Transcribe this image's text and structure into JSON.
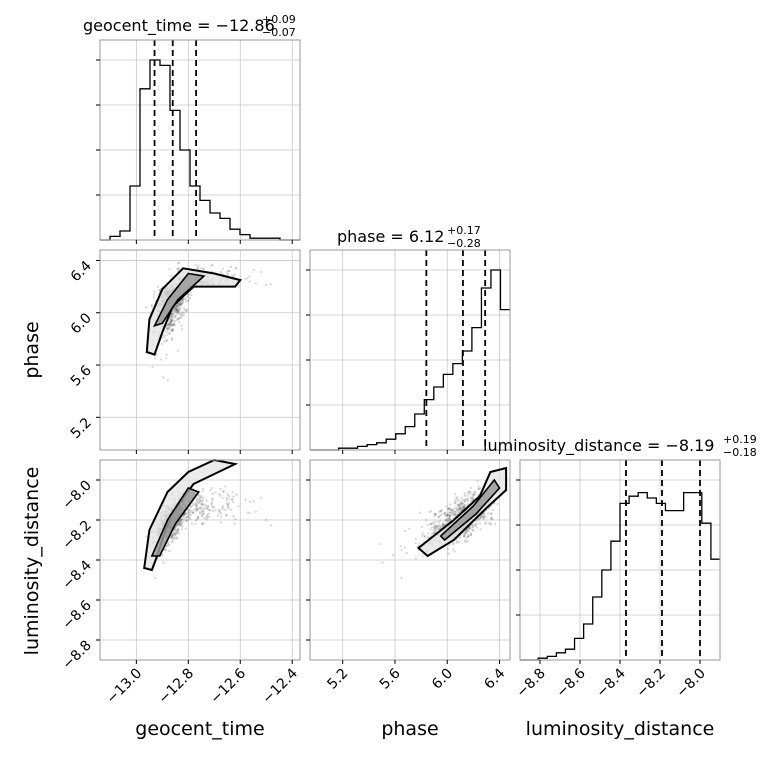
{
  "chart_data": {
    "type": "corner",
    "params": [
      "geocent_time",
      "phase",
      "luminosity_distance"
    ],
    "titles": [
      {
        "text": "geocent_time = −12.86",
        "sup": "+0.09",
        "sub": "−0.07"
      },
      {
        "text": "phase = 6.12",
        "sup": "+0.17",
        "sub": "−0.28"
      },
      {
        "text": "luminosity_distance = −8.19",
        "sup": "+0.19",
        "sub": "−0.18"
      }
    ],
    "axis_labels": [
      "geocent_time",
      "phase",
      "luminosity_distance"
    ],
    "ranges": [
      [
        -13.14,
        -12.37
      ],
      [
        4.95,
        6.48
      ],
      [
        -8.9,
        -7.9
      ]
    ],
    "ticks": {
      "geocent_time": [
        "−13.0",
        "−12.8",
        "−12.6",
        "−12.4"
      ],
      "phase": [
        "5.2",
        "5.6",
        "6.0",
        "6.4"
      ],
      "luminosity_distance": [
        "−8.8",
        "−8.6",
        "−8.4",
        "−8.2",
        "−8.0"
      ]
    },
    "quantiles": {
      "geocent_time": [
        -12.93,
        -12.86,
        -12.77
      ],
      "phase": [
        5.84,
        6.12,
        6.29
      ],
      "luminosity_distance": [
        -8.37,
        -8.19,
        -8.0
      ]
    },
    "histograms": {
      "geocent_time": {
        "lo": -13.14,
        "hi": -12.37,
        "counts": [
          0,
          0.02,
          0.05,
          0.3,
          0.84,
          1.0,
          0.97,
          0.72,
          0.5,
          0.3,
          0.22,
          0.15,
          0.12,
          0.06,
          0.03,
          0.01,
          0.01,
          0.01,
          0,
          0
        ]
      },
      "phase": {
        "lo": 4.95,
        "hi": 6.48,
        "counts": [
          0,
          0,
          0,
          0.01,
          0.01,
          0.02,
          0.03,
          0.04,
          0.06,
          0.09,
          0.13,
          0.2,
          0.28,
          0.35,
          0.42,
          0.48,
          0.55,
          0.68,
          0.9,
          1.0,
          0.78
        ]
      },
      "luminosity_distance": {
        "lo": -8.9,
        "hi": -7.9,
        "counts": [
          0,
          0,
          0.01,
          0.02,
          0.04,
          0.06,
          0.12,
          0.2,
          0.35,
          0.5,
          0.66,
          0.87,
          0.91,
          0.93,
          0.9,
          0.87,
          0.83,
          0.83,
          0.93,
          0.93,
          0.76,
          0.56
        ]
      }
    },
    "grid": true
  }
}
